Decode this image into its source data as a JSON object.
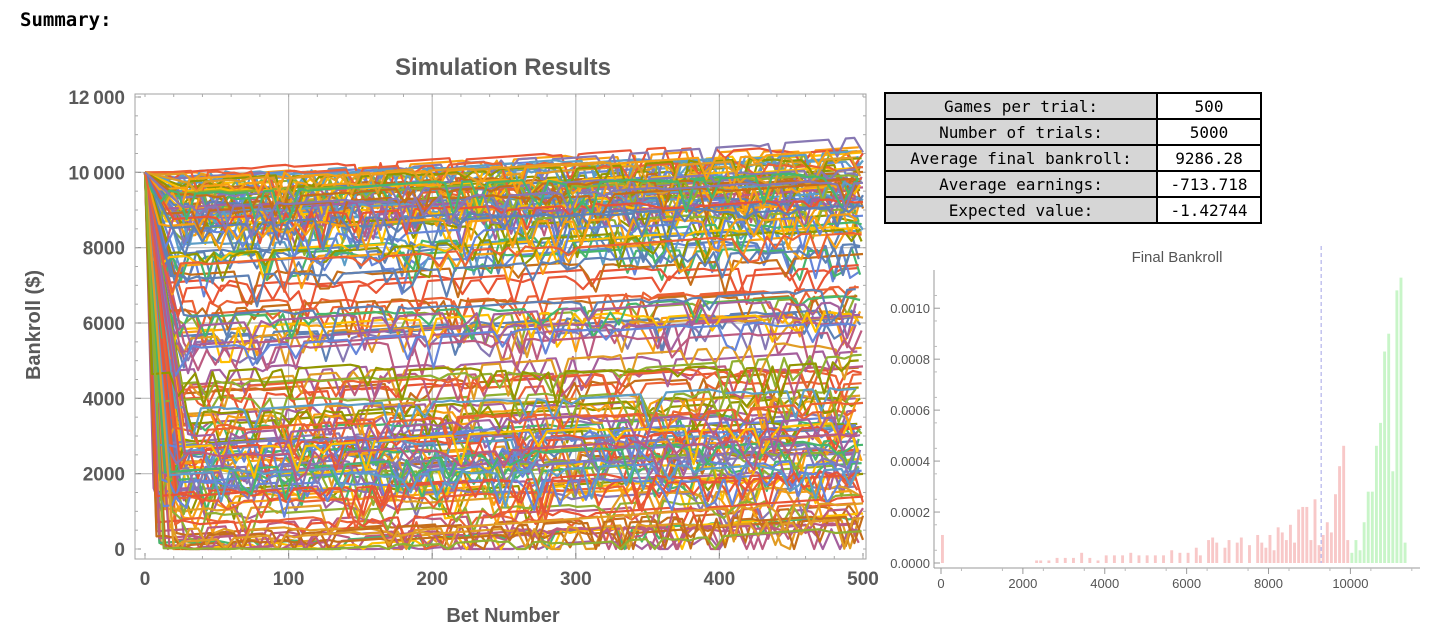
{
  "heading": "Summary:",
  "stats": [
    {
      "label": "Games per trial:",
      "value": "500"
    },
    {
      "label": "Number of trials:",
      "value": "5000"
    },
    {
      "label": "Average final bankroll:",
      "value": "9286.28"
    },
    {
      "label": "Average earnings:",
      "value": "-713.718"
    },
    {
      "label": "Expected value:",
      "value": "-1.42744"
    }
  ],
  "chart_data": [
    {
      "type": "line",
      "title": "Simulation Results",
      "xlabel": "Bet Number",
      "ylabel": "Bankroll ($)",
      "xlim": [
        0,
        500
      ],
      "ylim": [
        0,
        12000
      ],
      "xticks": [
        "0",
        "100",
        "200",
        "300",
        "400",
        "500"
      ],
      "yticks": [
        "0",
        "2000",
        "4000",
        "6000",
        "8000",
        "10000",
        "12000"
      ],
      "grid": true,
      "start_value": 10000,
      "upper_bound": {
        "x": [
          0,
          500
        ],
        "y": [
          10000,
          11350
        ]
      },
      "colors": [
        "#5e81b5",
        "#e19c24",
        "#8fb032",
        "#eb6235",
        "#8778b3",
        "#c56e1a",
        "#5d9ec7",
        "#ffbf00",
        "#a5609d",
        "#929600",
        "#e95536",
        "#6685d9",
        "#f89f13",
        "#bc5b80",
        "#47b66d"
      ]
    },
    {
      "type": "bar",
      "title": "Final Bankroll",
      "xlim": [
        -100,
        11700
      ],
      "ylim": [
        0,
        0.00115
      ],
      "xticks": [
        "0",
        "2000",
        "4000",
        "6000",
        "8000",
        "10000"
      ],
      "yticks": [
        "0.0000",
        "0.0002",
        "0.0004",
        "0.0006",
        "0.0008",
        "0.0010"
      ],
      "mean_line": 9286.28,
      "loss_color": "#f8c8c8",
      "gain_color": "#c8f5c8",
      "bins": [
        {
          "x": 0,
          "y": 0.00011
        },
        {
          "x": 2300,
          "y": 1e-05
        },
        {
          "x": 2400,
          "y": 1e-05
        },
        {
          "x": 2600,
          "y": 1e-05
        },
        {
          "x": 2800,
          "y": 2e-05
        },
        {
          "x": 3000,
          "y": 2e-05
        },
        {
          "x": 3200,
          "y": 2e-05
        },
        {
          "x": 3400,
          "y": 4e-05
        },
        {
          "x": 3600,
          "y": 2e-05
        },
        {
          "x": 3800,
          "y": 1e-05
        },
        {
          "x": 4000,
          "y": 3e-05
        },
        {
          "x": 4200,
          "y": 3e-05
        },
        {
          "x": 4400,
          "y": 3e-05
        },
        {
          "x": 4600,
          "y": 4e-05
        },
        {
          "x": 4800,
          "y": 3e-05
        },
        {
          "x": 5000,
          "y": 3e-05
        },
        {
          "x": 5200,
          "y": 3e-05
        },
        {
          "x": 5400,
          "y": 3e-05
        },
        {
          "x": 5600,
          "y": 5e-05
        },
        {
          "x": 5800,
          "y": 4e-05
        },
        {
          "x": 6000,
          "y": 4e-05
        },
        {
          "x": 6200,
          "y": 6e-05
        },
        {
          "x": 6300,
          "y": 3e-05
        },
        {
          "x": 6500,
          "y": 9e-05
        },
        {
          "x": 6600,
          "y": 0.0001
        },
        {
          "x": 6700,
          "y": 8e-05
        },
        {
          "x": 6900,
          "y": 6e-05
        },
        {
          "x": 7000,
          "y": 9e-05
        },
        {
          "x": 7200,
          "y": 8e-05
        },
        {
          "x": 7300,
          "y": 0.0001
        },
        {
          "x": 7500,
          "y": 7e-05
        },
        {
          "x": 7700,
          "y": 0.00011
        },
        {
          "x": 7800,
          "y": 8e-05
        },
        {
          "x": 7900,
          "y": 6e-05
        },
        {
          "x": 8000,
          "y": 0.00011
        },
        {
          "x": 8100,
          "y": 5e-05
        },
        {
          "x": 8200,
          "y": 0.00014
        },
        {
          "x": 8300,
          "y": 0.00012
        },
        {
          "x": 8400,
          "y": 9e-05
        },
        {
          "x": 8500,
          "y": 0.00015
        },
        {
          "x": 8600,
          "y": 8e-05
        },
        {
          "x": 8700,
          "y": 0.00021
        },
        {
          "x": 8800,
          "y": 0.00022
        },
        {
          "x": 8900,
          "y": 0.00022
        },
        {
          "x": 9000,
          "y": 9e-05
        },
        {
          "x": 9100,
          "y": 0.00025
        },
        {
          "x": 9200,
          "y": 7e-05
        },
        {
          "x": 9300,
          "y": 0.00011
        },
        {
          "x": 9400,
          "y": 0.00016
        },
        {
          "x": 9500,
          "y": 0.00012
        },
        {
          "x": 9600,
          "y": 0.00027
        },
        {
          "x": 9700,
          "y": 0.00038
        },
        {
          "x": 9800,
          "y": 0.00046
        },
        {
          "x": 9900,
          "y": 9e-05
        },
        {
          "x": 10000,
          "y": 4e-05
        },
        {
          "x": 10100,
          "y": 9e-05
        },
        {
          "x": 10200,
          "y": 5e-05
        },
        {
          "x": 10300,
          "y": 0.00016
        },
        {
          "x": 10400,
          "y": 0.00028
        },
        {
          "x": 10500,
          "y": 0.00028
        },
        {
          "x": 10600,
          "y": 0.00046
        },
        {
          "x": 10700,
          "y": 0.00055
        },
        {
          "x": 10800,
          "y": 0.00083
        },
        {
          "x": 10900,
          "y": 0.0009
        },
        {
          "x": 11000,
          "y": 0.00036
        },
        {
          "x": 11100,
          "y": 0.00107
        },
        {
          "x": 11200,
          "y": 0.00112
        },
        {
          "x": 11300,
          "y": 8e-05
        }
      ]
    }
  ]
}
